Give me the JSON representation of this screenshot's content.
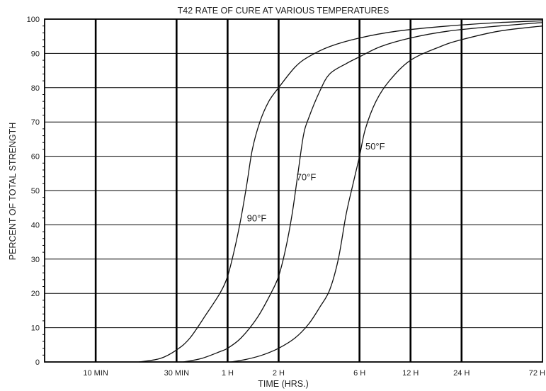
{
  "chart_data": {
    "type": "line",
    "title": "T42 RATE OF CURE AT VARIOUS TEMPERATURES",
    "xlabel": "TIME (HRS.)",
    "ylabel": "PERCENT OF TOTAL STRENGTH",
    "x_scale": "log",
    "x_unit": "hours",
    "xlim": [
      0.0833,
      72
    ],
    "ylim": [
      0,
      100
    ],
    "grid": true,
    "x_ticks": [
      {
        "label": "10 MIN",
        "value": 0.1667
      },
      {
        "label": "30 MIN",
        "value": 0.5
      },
      {
        "label": "1 H",
        "value": 1
      },
      {
        "label": "2 H",
        "value": 2
      },
      {
        "label": "6 H",
        "value": 6
      },
      {
        "label": "12 H",
        "value": 12
      },
      {
        "label": "24 H",
        "value": 24
      },
      {
        "label": "72 H",
        "value": 72
      }
    ],
    "y_ticks": [
      0,
      10,
      20,
      30,
      40,
      50,
      60,
      70,
      80,
      90,
      100
    ],
    "series": [
      {
        "name": "90°F",
        "label_at": [
          1.3,
          41
        ],
        "points": [
          [
            0.3,
            0
          ],
          [
            0.4,
            1
          ],
          [
            0.5,
            3.5
          ],
          [
            0.6,
            7
          ],
          [
            0.75,
            14
          ],
          [
            0.9,
            20
          ],
          [
            1.0,
            25
          ],
          [
            1.1,
            33
          ],
          [
            1.2,
            42
          ],
          [
            1.3,
            52
          ],
          [
            1.4,
            62
          ],
          [
            1.55,
            70
          ],
          [
            1.75,
            76
          ],
          [
            2.0,
            80
          ],
          [
            2.5,
            86
          ],
          [
            3.0,
            89
          ],
          [
            4.0,
            92
          ],
          [
            6.0,
            94.5
          ],
          [
            10.0,
            96.5
          ],
          [
            20.0,
            98
          ],
          [
            40.0,
            99
          ],
          [
            72.0,
            99.5
          ]
        ]
      },
      {
        "name": "70°F",
        "label_at": [
          2.55,
          53
        ],
        "points": [
          [
            0.55,
            0
          ],
          [
            0.7,
            1
          ],
          [
            0.9,
            3
          ],
          [
            1.0,
            4
          ],
          [
            1.2,
            7
          ],
          [
            1.5,
            13
          ],
          [
            1.8,
            20
          ],
          [
            2.0,
            25
          ],
          [
            2.2,
            33
          ],
          [
            2.4,
            43
          ],
          [
            2.6,
            55
          ],
          [
            2.8,
            66
          ],
          [
            3.0,
            71
          ],
          [
            3.5,
            79
          ],
          [
            4.0,
            84
          ],
          [
            5.0,
            87
          ],
          [
            6.0,
            89
          ],
          [
            8.0,
            92
          ],
          [
            12.0,
            94.5
          ],
          [
            20.0,
            96.5
          ],
          [
            40.0,
            98
          ],
          [
            72.0,
            99
          ]
        ]
      },
      {
        "name": "50°F",
        "label_at": [
          6.5,
          62
        ],
        "points": [
          [
            1.05,
            0
          ],
          [
            1.3,
            0.8
          ],
          [
            1.6,
            2
          ],
          [
            2.0,
            4
          ],
          [
            2.5,
            7
          ],
          [
            3.0,
            11
          ],
          [
            3.5,
            16
          ],
          [
            4.0,
            21
          ],
          [
            4.5,
            30
          ],
          [
            5.0,
            43
          ],
          [
            5.5,
            52
          ],
          [
            6.0,
            60
          ],
          [
            6.5,
            68
          ],
          [
            7.5,
            76
          ],
          [
            9.0,
            82
          ],
          [
            12.0,
            88
          ],
          [
            18.0,
            92
          ],
          [
            24.0,
            94
          ],
          [
            40.0,
            96.5
          ],
          [
            72.0,
            98
          ]
        ]
      }
    ]
  }
}
